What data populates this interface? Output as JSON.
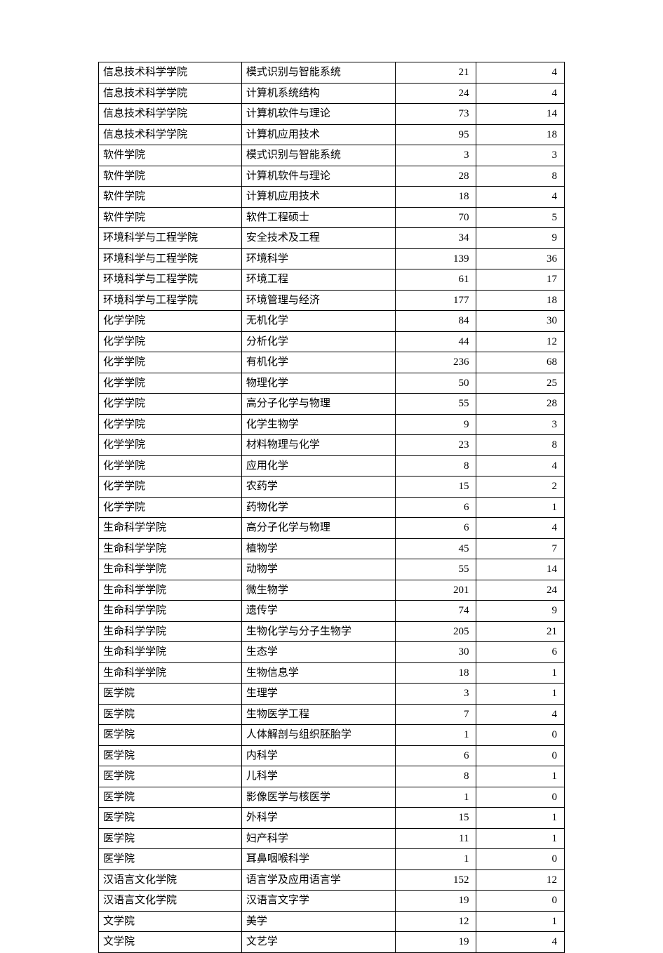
{
  "table": {
    "background_color": "#ffffff",
    "border_color": "#000000",
    "font_family": "SimSun",
    "font_size": 15,
    "col1_width": 195,
    "col2_width": 210,
    "col3_width": 110,
    "col4_width": 120,
    "col1_align": "left",
    "col2_align": "left",
    "col3_align": "right",
    "col4_align": "right",
    "rows": [
      [
        "信息技术科学学院",
        "模式识别与智能系统",
        "21",
        "4"
      ],
      [
        "信息技术科学学院",
        "计算机系统结构",
        "24",
        "4"
      ],
      [
        "信息技术科学学院",
        "计算机软件与理论",
        "73",
        "14"
      ],
      [
        "信息技术科学学院",
        "计算机应用技术",
        "95",
        "18"
      ],
      [
        "软件学院",
        "模式识别与智能系统",
        "3",
        "3"
      ],
      [
        "软件学院",
        "计算机软件与理论",
        "28",
        "8"
      ],
      [
        "软件学院",
        "计算机应用技术",
        "18",
        "4"
      ],
      [
        "软件学院",
        "软件工程硕士",
        "70",
        "5"
      ],
      [
        "环境科学与工程学院",
        "安全技术及工程",
        "34",
        "9"
      ],
      [
        "环境科学与工程学院",
        "环境科学",
        "139",
        "36"
      ],
      [
        "环境科学与工程学院",
        "环境工程",
        "61",
        "17"
      ],
      [
        "环境科学与工程学院",
        "环境管理与经济",
        "177",
        "18"
      ],
      [
        "化学学院",
        "无机化学",
        "84",
        "30"
      ],
      [
        "化学学院",
        "分析化学",
        "44",
        "12"
      ],
      [
        "化学学院",
        "有机化学",
        "236",
        "68"
      ],
      [
        "化学学院",
        "物理化学",
        "50",
        "25"
      ],
      [
        "化学学院",
        "高分子化学与物理",
        "55",
        "28"
      ],
      [
        "化学学院",
        "化学生物学",
        "9",
        "3"
      ],
      [
        "化学学院",
        "材料物理与化学",
        "23",
        "8"
      ],
      [
        "化学学院",
        "应用化学",
        "8",
        "4"
      ],
      [
        "化学学院",
        "农药学",
        "15",
        "2"
      ],
      [
        "化学学院",
        "药物化学",
        "6",
        "1"
      ],
      [
        "生命科学学院",
        "高分子化学与物理",
        "6",
        "4"
      ],
      [
        "生命科学学院",
        "植物学",
        "45",
        "7"
      ],
      [
        "生命科学学院",
        "动物学",
        "55",
        "14"
      ],
      [
        "生命科学学院",
        "微生物学",
        "201",
        "24"
      ],
      [
        "生命科学学院",
        "遗传学",
        "74",
        "9"
      ],
      [
        "生命科学学院",
        "生物化学与分子生物学",
        "205",
        "21"
      ],
      [
        "生命科学学院",
        "生态学",
        "30",
        "6"
      ],
      [
        "生命科学学院",
        "生物信息学",
        "18",
        "1"
      ],
      [
        "医学院",
        "生理学",
        "3",
        "1"
      ],
      [
        "医学院",
        "生物医学工程",
        "7",
        "4"
      ],
      [
        "医学院",
        "人体解剖与组织胚胎学",
        "1",
        "0"
      ],
      [
        "医学院",
        "内科学",
        "6",
        "0"
      ],
      [
        "医学院",
        "儿科学",
        "8",
        "1"
      ],
      [
        "医学院",
        "影像医学与核医学",
        "1",
        "0"
      ],
      [
        "医学院",
        "外科学",
        "15",
        "1"
      ],
      [
        "医学院",
        "妇产科学",
        "11",
        "1"
      ],
      [
        "医学院",
        "耳鼻咽喉科学",
        "1",
        "0"
      ],
      [
        "汉语言文化学院",
        "语言学及应用语言学",
        "152",
        "12"
      ],
      [
        "汉语言文化学院",
        "汉语言文字学",
        "19",
        "0"
      ],
      [
        "文学院",
        "美学",
        "12",
        "1"
      ],
      [
        "文学院",
        "文艺学",
        "19",
        "4"
      ]
    ]
  }
}
